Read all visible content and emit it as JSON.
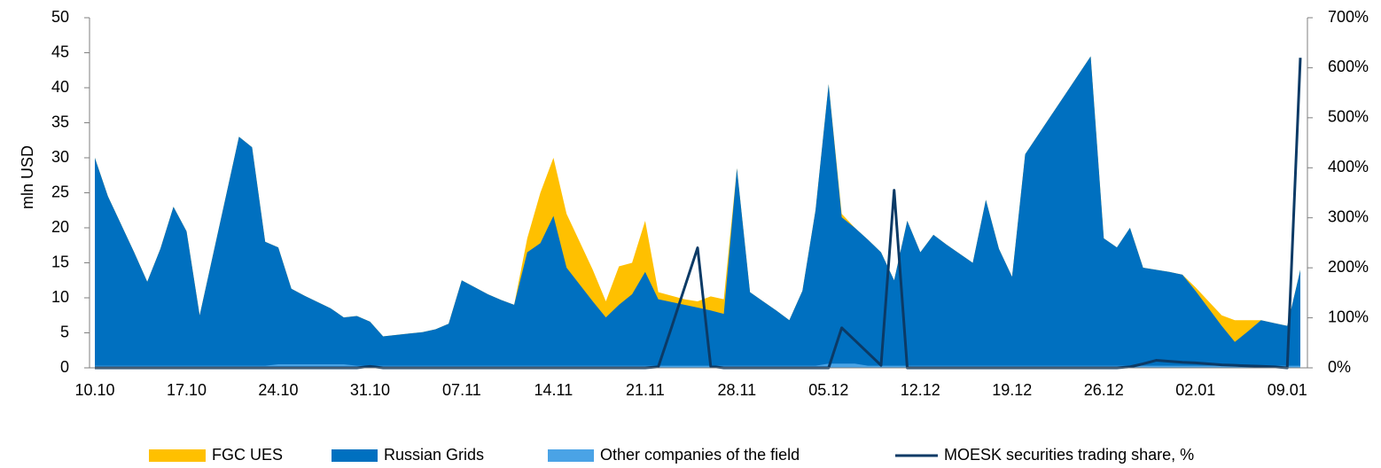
{
  "chart_data": {
    "type": "area",
    "y_label": "mln USD",
    "categories": [
      "10.10",
      null,
      null,
      null,
      null,
      null,
      null,
      "17.10",
      null,
      null,
      null,
      null,
      null,
      null,
      "24.10",
      null,
      null,
      null,
      null,
      null,
      null,
      "31.10",
      null,
      null,
      null,
      null,
      null,
      null,
      "07.11",
      null,
      null,
      null,
      null,
      null,
      null,
      "14.11",
      null,
      null,
      null,
      null,
      null,
      null,
      "21.11",
      null,
      null,
      null,
      null,
      null,
      null,
      "28.11",
      null,
      null,
      null,
      null,
      null,
      null,
      "05.12",
      null,
      null,
      null,
      null,
      null,
      null,
      "12.12",
      null,
      null,
      null,
      null,
      null,
      null,
      "19.12",
      null,
      null,
      null,
      null,
      null,
      null,
      "26.12",
      null,
      null,
      null,
      null,
      null,
      null,
      "02.01",
      null,
      null,
      null,
      null,
      null,
      null,
      "09.01",
      null
    ],
    "series": [
      {
        "name": "FGC UES",
        "color": "#ffc000",
        "values": [
          30,
          24.5,
          20.5,
          16.5,
          12.3,
          17,
          23,
          19.5,
          7.5,
          16,
          24.5,
          33,
          31.5,
          18,
          17.2,
          11.3,
          10.3,
          9.4,
          8.5,
          7.2,
          7.4,
          6.6,
          4.5,
          4.7,
          4.9,
          5.1,
          5.5,
          6.3,
          12.5,
          11.5,
          10.5,
          9.7,
          9,
          18.5,
          25,
          30,
          22,
          18,
          14,
          9.5,
          14.5,
          15,
          21,
          10.8,
          10.3,
          9.8,
          9.5,
          10.2,
          9.8,
          28.5,
          10.8,
          9.5,
          8.2,
          6.8,
          11,
          22.5,
          40.5,
          22,
          20,
          18.3,
          16.5,
          12.5,
          21,
          16.5,
          19,
          17.6,
          16.3,
          15,
          24,
          17,
          13,
          30.5,
          33.3,
          36.1,
          38.9,
          41.7,
          44.5,
          18.5,
          17.2,
          20,
          14.3,
          14,
          13.7,
          13.3,
          11.5,
          9.5,
          7.5,
          6.8,
          6.8,
          6.8,
          6.4,
          6,
          14
        ]
      },
      {
        "name": "Russian Grids",
        "color": "#0070c0",
        "values": [
          30,
          24.5,
          20.5,
          16.5,
          12.3,
          17,
          23,
          19.5,
          7.5,
          16,
          24.5,
          33,
          31.5,
          18,
          17.2,
          11.3,
          10.3,
          9.4,
          8.5,
          7.2,
          7.4,
          6.6,
          4.5,
          4.7,
          4.9,
          5.1,
          5.5,
          6.3,
          12.5,
          11.5,
          10.5,
          9.7,
          9,
          16.5,
          17.8,
          21.7,
          14.3,
          11.9,
          9.5,
          7.2,
          9,
          10.5,
          13.7,
          9.8,
          9.4,
          9,
          8.6,
          8.2,
          7.7,
          28.5,
          10.8,
          9.5,
          8.2,
          6.8,
          11,
          22.5,
          40.5,
          21.5,
          20,
          18.3,
          16.5,
          12.5,
          21,
          16.5,
          19,
          17.6,
          16.3,
          15,
          24,
          17,
          13,
          30.5,
          33.3,
          36.1,
          38.9,
          41.7,
          44.5,
          18.5,
          17.2,
          20,
          14.3,
          14,
          13.7,
          13.3,
          11,
          8.5,
          6,
          3.7,
          5.2,
          6.8,
          6.4,
          6,
          14
        ]
      },
      {
        "name": "Other companies of the field",
        "color": "#4aa3e6",
        "values": [
          0.3,
          0.3,
          0.3,
          0.3,
          0.3,
          0.3,
          0.3,
          0.3,
          0.3,
          0.3,
          0.3,
          0.3,
          0.3,
          0.3,
          0.5,
          0.5,
          0.5,
          0.5,
          0.5,
          0.5,
          0.3,
          0.3,
          0.3,
          0.3,
          0.3,
          0.3,
          0.3,
          0.3,
          0.3,
          0.3,
          0.3,
          0.3,
          0.3,
          0.3,
          0.3,
          0.3,
          0.3,
          0.3,
          0.3,
          0.3,
          0.3,
          0.3,
          0.3,
          0.3,
          0.3,
          0.3,
          0.3,
          0.3,
          0.3,
          0.3,
          0.3,
          0.3,
          0.3,
          0.3,
          0.3,
          0.3,
          0.6,
          0.6,
          0.6,
          0.3,
          0.3,
          0.3,
          0.3,
          0.3,
          0.3,
          0.3,
          0.3,
          0.3,
          0.3,
          0.3,
          0.3,
          0.3,
          0.3,
          0.3,
          0.3,
          0.3,
          0.3,
          0.3,
          0.3,
          0.3,
          0.3,
          0.3,
          0.3,
          0.3,
          0.3,
          0.3,
          0.3,
          0.3,
          0.3,
          0.3,
          0.3,
          0.3,
          0.3
        ]
      },
      {
        "name": "MOESK securities trading share, %",
        "color": "#0b3a66",
        "axis": "y2",
        "kind": "line",
        "values": [
          0,
          0,
          0,
          0,
          0,
          0,
          0,
          0,
          0,
          0,
          0,
          0,
          0,
          0,
          0,
          0,
          0,
          0,
          0,
          0,
          0,
          3,
          0,
          0,
          0,
          0,
          0,
          0,
          0,
          0,
          0,
          0,
          0,
          0,
          0,
          0,
          0,
          0,
          0,
          0,
          0,
          0,
          0,
          2,
          80,
          160,
          240,
          3,
          0,
          0,
          0,
          0,
          0,
          0,
          0,
          0,
          0,
          80,
          55,
          30,
          5,
          355,
          0,
          0,
          0,
          0,
          0,
          0,
          0,
          0,
          0,
          0,
          0,
          0,
          0,
          0,
          0,
          0,
          0,
          2,
          8,
          15,
          13,
          11,
          10,
          8,
          6,
          5,
          4,
          3,
          2,
          0,
          620
        ]
      }
    ],
    "ylim": [
      0,
      50
    ],
    "yticks": [
      0,
      5,
      10,
      15,
      20,
      25,
      30,
      35,
      40,
      45,
      50
    ],
    "y2lim": [
      0,
      700
    ],
    "y2ticks": [
      {
        "value": 0,
        "label": "0%"
      },
      {
        "value": 100,
        "label": "100%"
      },
      {
        "value": 200,
        "label": "200%"
      },
      {
        "value": 300,
        "label": "300%"
      },
      {
        "value": 400,
        "label": "400%"
      },
      {
        "value": 500,
        "label": "500%"
      },
      {
        "value": 600,
        "label": "600%"
      },
      {
        "value": 700,
        "label": "700%"
      }
    ],
    "grid": false,
    "legend": "bottom"
  }
}
